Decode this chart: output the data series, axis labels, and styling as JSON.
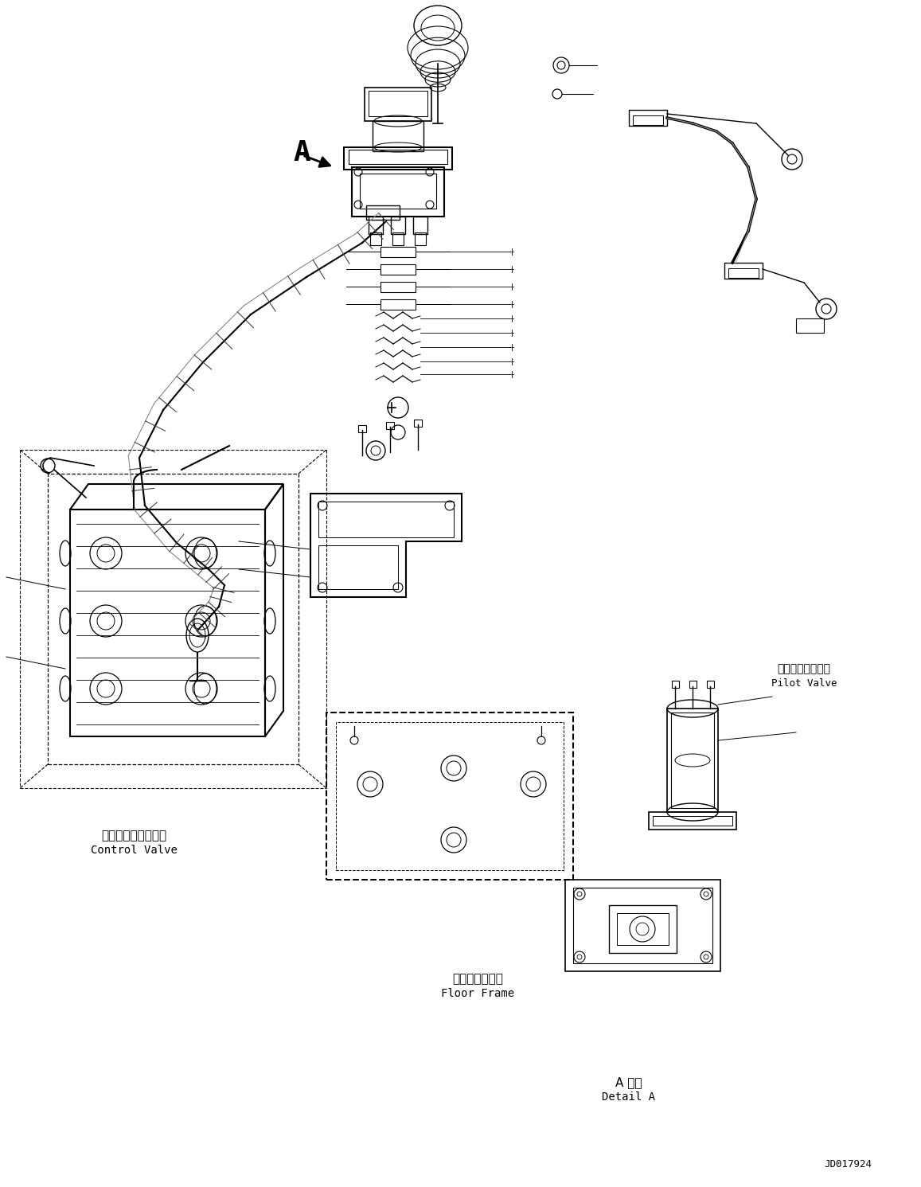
{
  "figure_width": 11.57,
  "figure_height": 14.91,
  "dpi": 100,
  "bg_color": "#ffffff",
  "line_color": "#000000",
  "label_control_valve_jp": "コントロールバルブ",
  "label_control_valve_en": "Control Valve",
  "label_pilot_valve_jp": "パイロットバルブ",
  "label_pilot_valve_en": "Pilot Valve",
  "label_floor_frame_jp": "フロアフレーム",
  "label_floor_frame_en": "Floor Frame",
  "label_detail_jp": "A 詳細",
  "label_detail_en": "Detail A",
  "label_drawing_no": "JD017924",
  "label_A": "A"
}
